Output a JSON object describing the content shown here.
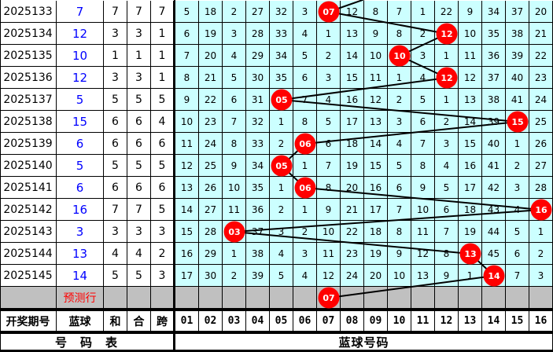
{
  "header": {
    "period_label": "开奖期号",
    "blue_label": "蓝球",
    "sum_label": "和",
    "combine_label": "合",
    "span_label": "跨",
    "numbers": [
      "01",
      "02",
      "03",
      "04",
      "05",
      "06",
      "07",
      "08",
      "09",
      "10",
      "11",
      "12",
      "13",
      "14",
      "15",
      "16"
    ]
  },
  "footer": {
    "left_label": "号　码　表",
    "right_label": "蓝球号码"
  },
  "predict": {
    "label": "预测行",
    "ball": "07",
    "column": 7
  },
  "colors": {
    "grid_bg": "#ccffff",
    "ball": "#ff0000",
    "blue_text": "#0000ff",
    "predict_bg": "#c0c0c0"
  },
  "rows": [
    {
      "period": "2025133",
      "blue": "7",
      "sum": "7",
      "combine": "7",
      "span": "7",
      "cells": [
        "5",
        "18",
        "2",
        "27",
        "32",
        "3",
        "07",
        "12",
        "8",
        "7",
        "1",
        "22",
        "9",
        "34",
        "37",
        "20"
      ],
      "hit": 7
    },
    {
      "period": "2025134",
      "blue": "12",
      "sum": "3",
      "combine": "3",
      "span": "1",
      "cells": [
        "6",
        "19",
        "3",
        "28",
        "33",
        "4",
        "1",
        "13",
        "9",
        "8",
        "2",
        "12",
        "10",
        "35",
        "38",
        "21"
      ],
      "hit": 12
    },
    {
      "period": "2025135",
      "blue": "10",
      "sum": "1",
      "combine": "1",
      "span": "1",
      "cells": [
        "7",
        "20",
        "4",
        "29",
        "34",
        "5",
        "2",
        "14",
        "10",
        "10",
        "3",
        "1",
        "11",
        "36",
        "39",
        "22"
      ],
      "hit": 10
    },
    {
      "period": "2025136",
      "blue": "12",
      "sum": "3",
      "combine": "3",
      "span": "1",
      "cells": [
        "8",
        "21",
        "5",
        "30",
        "35",
        "6",
        "3",
        "15",
        "11",
        "1",
        "4",
        "12",
        "12",
        "37",
        "40",
        "23"
      ],
      "hit": 12
    },
    {
      "period": "2025137",
      "blue": "5",
      "sum": "5",
      "combine": "5",
      "span": "5",
      "cells": [
        "9",
        "22",
        "6",
        "31",
        "05",
        "7",
        "4",
        "16",
        "12",
        "2",
        "5",
        "1",
        "13",
        "38",
        "41",
        "24"
      ],
      "hit": 5
    },
    {
      "period": "2025138",
      "blue": "15",
      "sum": "6",
      "combine": "6",
      "span": "4",
      "cells": [
        "10",
        "23",
        "7",
        "32",
        "1",
        "8",
        "5",
        "17",
        "13",
        "3",
        "6",
        "2",
        "14",
        "39",
        "15",
        "25"
      ],
      "hit": 15
    },
    {
      "period": "2025139",
      "blue": "6",
      "sum": "6",
      "combine": "6",
      "span": "6",
      "cells": [
        "11",
        "24",
        "8",
        "33",
        "2",
        "06",
        "6",
        "18",
        "14",
        "4",
        "7",
        "3",
        "15",
        "40",
        "1",
        "26"
      ],
      "hit": 6
    },
    {
      "period": "2025140",
      "blue": "5",
      "sum": "5",
      "combine": "5",
      "span": "5",
      "cells": [
        "12",
        "25",
        "9",
        "34",
        "05",
        "1",
        "7",
        "19",
        "15",
        "5",
        "8",
        "4",
        "16",
        "41",
        "2",
        "27"
      ],
      "hit": 5
    },
    {
      "period": "2025141",
      "blue": "6",
      "sum": "6",
      "combine": "6",
      "span": "6",
      "cells": [
        "13",
        "26",
        "10",
        "35",
        "1",
        "06",
        "8",
        "20",
        "16",
        "6",
        "9",
        "5",
        "17",
        "42",
        "3",
        "28"
      ],
      "hit": 6
    },
    {
      "period": "2025142",
      "blue": "16",
      "sum": "7",
      "combine": "7",
      "span": "5",
      "cells": [
        "14",
        "27",
        "11",
        "36",
        "2",
        "1",
        "9",
        "21",
        "17",
        "7",
        "10",
        "6",
        "18",
        "43",
        "4",
        "16"
      ],
      "hit": 16
    },
    {
      "period": "2025143",
      "blue": "3",
      "sum": "3",
      "combine": "3",
      "span": "3",
      "cells": [
        "15",
        "28",
        "03",
        "37",
        "3",
        "2",
        "10",
        "22",
        "18",
        "8",
        "11",
        "7",
        "19",
        "44",
        "5",
        "1"
      ],
      "hit": 3
    },
    {
      "period": "2025144",
      "blue": "13",
      "sum": "4",
      "combine": "4",
      "span": "2",
      "cells": [
        "16",
        "29",
        "1",
        "38",
        "4",
        "3",
        "11",
        "23",
        "19",
        "9",
        "12",
        "8",
        "13",
        "45",
        "6",
        "2"
      ],
      "hit": 13
    },
    {
      "period": "2025145",
      "blue": "14",
      "sum": "5",
      "combine": "5",
      "span": "3",
      "cells": [
        "17",
        "30",
        "2",
        "39",
        "5",
        "4",
        "12",
        "24",
        "20",
        "10",
        "13",
        "9",
        "1",
        "14",
        "7",
        "3"
      ],
      "hit": 14
    }
  ]
}
